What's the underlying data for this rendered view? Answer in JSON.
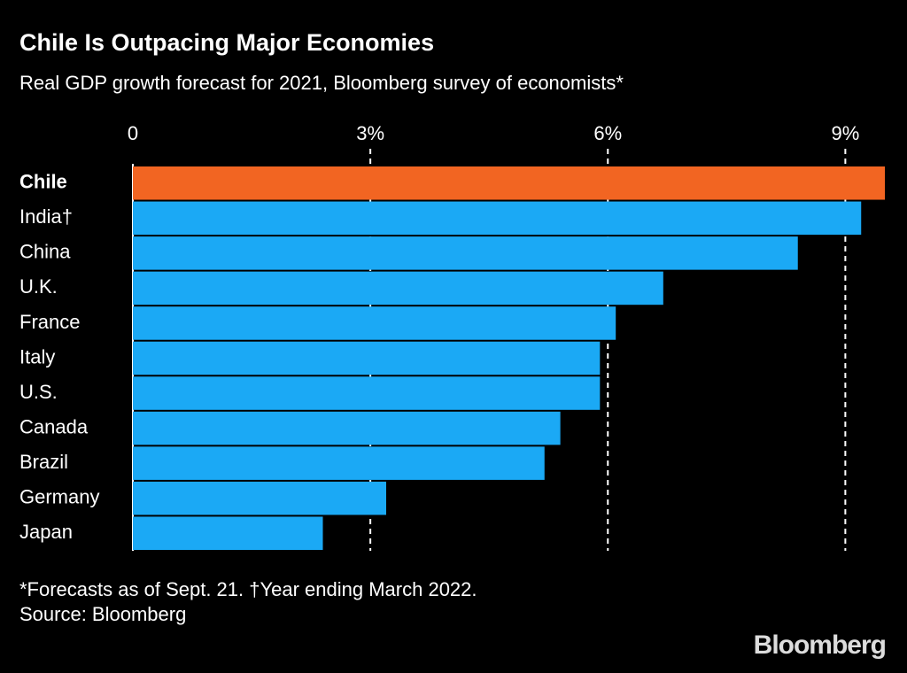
{
  "chart_data": {
    "type": "bar",
    "orientation": "horizontal",
    "title": "Chile Is Outpacing Major Economies",
    "subtitle": "Real GDP growth forecast for 2021, Bloomberg survey of economists*",
    "categories": [
      "Chile",
      "India†",
      "China",
      "U.K.",
      "France",
      "Italy",
      "U.S.",
      "Canada",
      "Brazil",
      "Germany",
      "Japan"
    ],
    "values": [
      9.5,
      9.2,
      8.4,
      6.7,
      6.1,
      5.9,
      5.9,
      5.4,
      5.2,
      3.2,
      2.4
    ],
    "colors": [
      "#f26522",
      "#1ba9f5",
      "#1ba9f5",
      "#1ba9f5",
      "#1ba9f5",
      "#1ba9f5",
      "#1ba9f5",
      "#1ba9f5",
      "#1ba9f5",
      "#1ba9f5",
      "#1ba9f5"
    ],
    "xlim": [
      0,
      9.6
    ],
    "xticks": [
      0,
      {
        "value": 3,
        "label": "3%"
      },
      {
        "value": 6,
        "label": "6%"
      },
      {
        "value": 9,
        "label": "9%"
      }
    ],
    "grid": true,
    "footnote": "*Forecasts as of Sept. 21. †Year ending March 2022.",
    "source": "Source: Bloomberg",
    "logo": "Bloomberg"
  }
}
